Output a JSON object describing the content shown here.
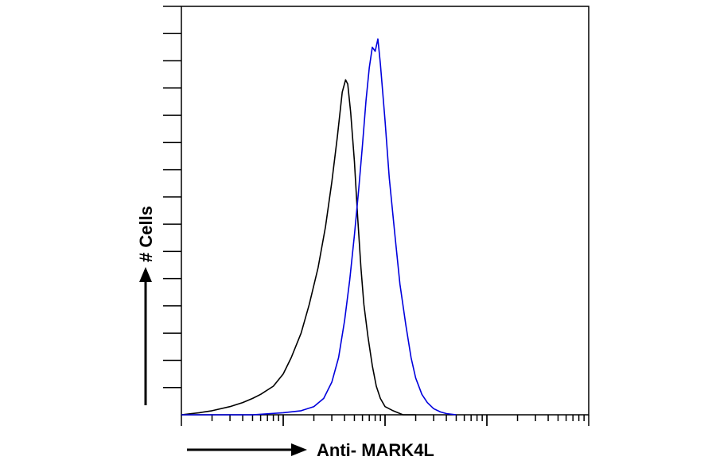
{
  "chart_data": {
    "type": "line",
    "title": "",
    "xlabel": "Anti- MARK4L",
    "ylabel": "# Cells",
    "x_scale": "log",
    "xlim": [
      1,
      10000
    ],
    "ylim": [
      0,
      100
    ],
    "grid": false,
    "legend": "none",
    "series": [
      {
        "color": "#000000",
        "points": [
          [
            1,
            0
          ],
          [
            1.5,
            0.5
          ],
          [
            2,
            1
          ],
          [
            3,
            2
          ],
          [
            4,
            3
          ],
          [
            5,
            4
          ],
          [
            6,
            5
          ],
          [
            8,
            7
          ],
          [
            10,
            10
          ],
          [
            12,
            14
          ],
          [
            15,
            20
          ],
          [
            18,
            27
          ],
          [
            22,
            36
          ],
          [
            26,
            46
          ],
          [
            30,
            57
          ],
          [
            34,
            68
          ],
          [
            38,
            79
          ],
          [
            41,
            82
          ],
          [
            43,
            81
          ],
          [
            46,
            74
          ],
          [
            50,
            62
          ],
          [
            54,
            48
          ],
          [
            58,
            36
          ],
          [
            62,
            27
          ],
          [
            68,
            19
          ],
          [
            75,
            12
          ],
          [
            82,
            7
          ],
          [
            90,
            4
          ],
          [
            100,
            2
          ],
          [
            120,
            1
          ],
          [
            150,
            0
          ],
          [
            200,
            0
          ]
        ]
      },
      {
        "color": "#0000dd",
        "points": [
          [
            1,
            0
          ],
          [
            5,
            0
          ],
          [
            10,
            0.5
          ],
          [
            15,
            1
          ],
          [
            20,
            2
          ],
          [
            25,
            4
          ],
          [
            30,
            8
          ],
          [
            35,
            14
          ],
          [
            40,
            23
          ],
          [
            45,
            33
          ],
          [
            50,
            44
          ],
          [
            55,
            55
          ],
          [
            60,
            66
          ],
          [
            65,
            77
          ],
          [
            70,
            85
          ],
          [
            75,
            90
          ],
          [
            80,
            89
          ],
          [
            85,
            92
          ],
          [
            90,
            86
          ],
          [
            100,
            72
          ],
          [
            110,
            58
          ],
          [
            125,
            44
          ],
          [
            140,
            32
          ],
          [
            160,
            22
          ],
          [
            180,
            14
          ],
          [
            200,
            9
          ],
          [
            230,
            5
          ],
          [
            260,
            3
          ],
          [
            300,
            1.5
          ],
          [
            350,
            0.7
          ],
          [
            400,
            0.3
          ],
          [
            500,
            0
          ]
        ]
      }
    ]
  }
}
